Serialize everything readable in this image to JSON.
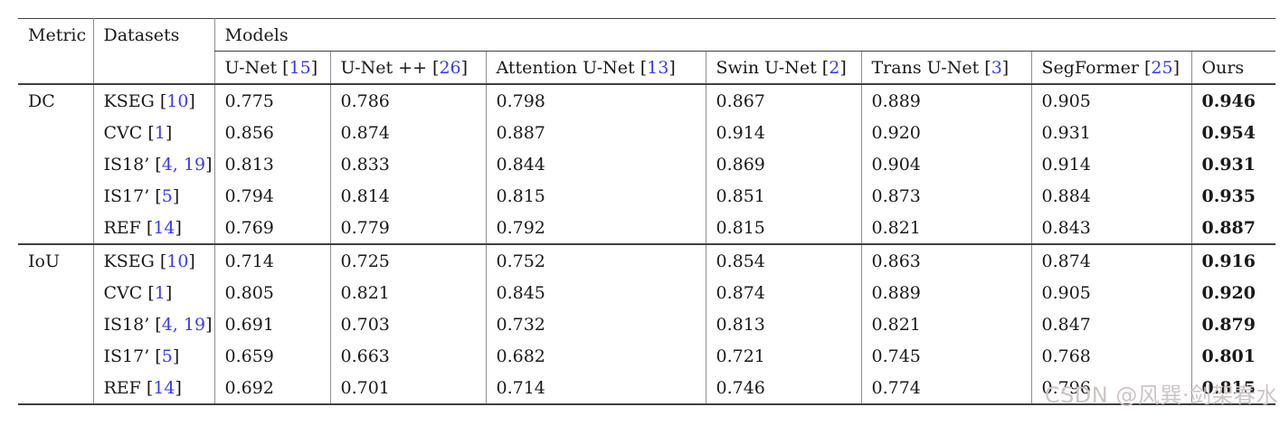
{
  "table": {
    "ref_brackets": [
      "[",
      "]"
    ],
    "header": {
      "metric_label": "Metric",
      "datasets_label": "Datasets",
      "models_label": "Models",
      "model_columns": [
        {
          "label": "U-Net",
          "ref": "15"
        },
        {
          "label": "U-Net ++",
          "ref": "26"
        },
        {
          "label": "Attention U-Net",
          "ref": "13"
        },
        {
          "label": "Swin U-Net",
          "ref": "2"
        },
        {
          "label": "Trans U-Net",
          "ref": "3"
        },
        {
          "label": "SegFormer",
          "ref": "25"
        },
        {
          "label": "Ours",
          "ref": ""
        }
      ]
    },
    "groups": [
      {
        "metric": "DC",
        "rows": [
          {
            "dataset": "KSEG",
            "refs": "10",
            "values": [
              "0.775",
              "0.786",
              "0.798",
              "0.867",
              "0.889",
              "0.905",
              "0.946"
            ]
          },
          {
            "dataset": "CVC",
            "refs": "1",
            "values": [
              "0.856",
              "0.874",
              "0.887",
              "0.914",
              "0.920",
              "0.931",
              "0.954"
            ]
          },
          {
            "dataset": "IS18’",
            "refs": "4, 19",
            "values": [
              "0.813",
              "0.833",
              "0.844",
              "0.869",
              "0.904",
              "0.914",
              "0.931"
            ]
          },
          {
            "dataset": "IS17’",
            "refs": "5",
            "values": [
              "0.794",
              "0.814",
              "0.815",
              "0.851",
              "0.873",
              "0.884",
              "0.935"
            ]
          },
          {
            "dataset": "REF",
            "refs": "14",
            "values": [
              "0.769",
              "0.779",
              "0.792",
              "0.815",
              "0.821",
              "0.843",
              "0.887"
            ]
          }
        ]
      },
      {
        "metric": "IoU",
        "rows": [
          {
            "dataset": "KSEG",
            "refs": "10",
            "values": [
              "0.714",
              "0.725",
              "0.752",
              "0.854",
              "0.863",
              "0.874",
              "0.916"
            ]
          },
          {
            "dataset": "CVC",
            "refs": "1",
            "values": [
              "0.805",
              "0.821",
              "0.845",
              "0.874",
              "0.889",
              "0.905",
              "0.920"
            ]
          },
          {
            "dataset": "IS18’",
            "refs": "4, 19",
            "values": [
              "0.691",
              "0.703",
              "0.732",
              "0.813",
              "0.821",
              "0.847",
              "0.879"
            ]
          },
          {
            "dataset": "IS17’",
            "refs": "5",
            "values": [
              "0.659",
              "0.663",
              "0.682",
              "0.721",
              "0.745",
              "0.768",
              "0.801"
            ]
          },
          {
            "dataset": "REF",
            "refs": "14",
            "values": [
              "0.692",
              "0.701",
              "0.714",
              "0.746",
              "0.774",
              "0.796",
              "0.815"
            ]
          }
        ]
      }
    ]
  },
  "watermark": {
    "text": "CSDN @风巽·剑架春水"
  },
  "colors": {
    "reference_link": "#3a3af0",
    "rule": "#3f3f3f",
    "grid": "#909090",
    "watermark": "#cdc5c5",
    "text": "#1a1a1a"
  }
}
